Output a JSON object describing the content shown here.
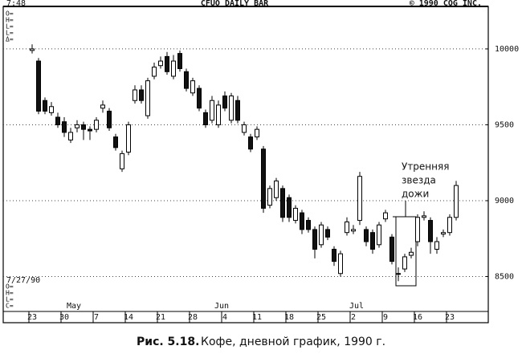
{
  "chart_data": {
    "type": "candlestick",
    "header_left": "7:48",
    "title": "CFUO DAILY BAR",
    "header_right": "© 1990 CQG INC.",
    "top_fields": [
      "O=",
      "H=",
      "L=",
      "L=",
      "Δ="
    ],
    "bottom_fields": [
      "O=",
      "H=",
      "L=",
      "C="
    ],
    "date_stamp": "7/27/90",
    "annotation": [
      "Утренняя",
      "звезда",
      "дожи"
    ],
    "caption_bold": "Рис. 5.18.",
    "caption": "Кофе, дневной график, 1990 г.",
    "categories": [
      "23",
      null,
      null,
      null,
      null,
      "30",
      null,
      null,
      null,
      null,
      "7",
      null,
      null,
      null,
      null,
      "14",
      null,
      null,
      null,
      null,
      "21",
      null,
      null,
      null,
      null,
      "28",
      null,
      null,
      null,
      null,
      "4",
      null,
      null,
      null,
      null,
      "11",
      null,
      null,
      null,
      null,
      "18",
      null,
      null,
      null,
      null,
      "25",
      null,
      null,
      null,
      null,
      "2",
      null,
      null,
      null,
      null,
      "9",
      null,
      null,
      null,
      null,
      "16",
      null,
      null,
      null,
      null,
      "23",
      null
    ],
    "months": [
      null,
      null,
      null,
      null,
      null,
      null,
      "May",
      null,
      null,
      null,
      null,
      null,
      null,
      null,
      null,
      null,
      null,
      null,
      null,
      null,
      null,
      null,
      null,
      null,
      null,
      null,
      null,
      null,
      null,
      "Jun",
      null,
      null,
      null,
      null,
      null,
      null,
      null,
      null,
      null,
      null,
      null,
      null,
      null,
      null,
      null,
      null,
      null,
      null,
      null,
      null,
      "Jul",
      null,
      null,
      null,
      null,
      null,
      null,
      null,
      null,
      null,
      null,
      null,
      null,
      null,
      null,
      null,
      null
    ],
    "open": [
      9990,
      9920,
      9660,
      9580,
      9550,
      9520,
      9400,
      9480,
      9500,
      9470,
      9470,
      9610,
      9590,
      9420,
      9210,
      9320,
      9660,
      9730,
      9560,
      9820,
      9890,
      9950,
      9820,
      9970,
      9850,
      9710,
      9740,
      9580,
      9530,
      9500,
      9690,
      9530,
      9660,
      9450,
      9420,
      9420,
      9340,
      8970,
      9020,
      9080,
      9020,
      8870,
      8920,
      8870,
      8810,
      8710,
      8810,
      8680,
      8520,
      8790,
      8800,
      8870,
      8810,
      8790,
      8710,
      8880,
      8760,
      8520,
      8550,
      8640,
      8730,
      8890,
      8870,
      8680,
      8780,
      8790,
      8890
    ],
    "high": [
      10030,
      9940,
      9680,
      9650,
      9580,
      9550,
      9480,
      9530,
      9520,
      9490,
      9550,
      9660,
      9610,
      9440,
      9330,
      9520,
      9760,
      9760,
      9810,
      9910,
      9950,
      9980,
      9960,
      9990,
      9870,
      9810,
      9760,
      9600,
      9690,
      9660,
      9720,
      9710,
      9690,
      9520,
      9440,
      9490,
      9360,
      9100,
      9150,
      9100,
      9040,
      8970,
      8940,
      8890,
      8830,
      8860,
      8830,
      8700,
      8670,
      8890,
      8840,
      9190,
      8830,
      8810,
      8860,
      8940,
      8780,
      8560,
      8650,
      8690,
      8910,
      8930,
      8890,
      8760,
      8810,
      8910,
      9130
    ],
    "low": [
      9970,
      9570,
      9570,
      9560,
      9480,
      9420,
      9380,
      9450,
      9400,
      9400,
      9450,
      9580,
      9460,
      9330,
      9190,
      9300,
      9640,
      9640,
      9540,
      9800,
      9870,
      9830,
      9800,
      9850,
      9720,
      9690,
      9590,
      9480,
      9510,
      9480,
      9590,
      9510,
      9510,
      9430,
      9320,
      9400,
      8920,
      8950,
      9000,
      8860,
      8860,
      8850,
      8780,
      8790,
      8620,
      8690,
      8740,
      8570,
      8500,
      8770,
      8780,
      8840,
      8700,
      8650,
      8690,
      8860,
      8580,
      8470,
      8530,
      8620,
      8700,
      8870,
      8650,
      8650,
      8760,
      8770,
      8870
    ],
    "close": [
      10000,
      9590,
      9590,
      9620,
      9500,
      9450,
      9450,
      9500,
      9470,
      9460,
      9530,
      9630,
      9480,
      9350,
      9310,
      9500,
      9730,
      9660,
      9790,
      9880,
      9920,
      9850,
      9920,
      9870,
      9740,
      9790,
      9610,
      9500,
      9660,
      9630,
      9610,
      9690,
      9530,
      9500,
      9340,
      9470,
      8950,
      9080,
      9130,
      8890,
      8890,
      8950,
      8810,
      8810,
      8680,
      8840,
      8760,
      8600,
      8650,
      8860,
      8810,
      9160,
      8730,
      8680,
      8840,
      8920,
      8600,
      8520,
      8630,
      8660,
      8890,
      8900,
      8730,
      8730,
      8790,
      8890,
      9100
    ],
    "ylim": [
      8270,
      10280
    ],
    "yticks": [
      8500,
      9000,
      9500,
      10000
    ],
    "grid": true
  }
}
